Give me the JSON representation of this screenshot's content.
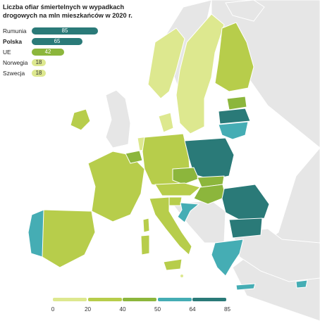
{
  "title_line1": "Liczba ofiar śmiertelnych w wypadkach",
  "title_line2": "drogowych na mln mieszkańców w 2020 r.",
  "bars": [
    {
      "label": "Rumunia",
      "value": "85",
      "num": 85,
      "bold": false,
      "color": "#2a7a78",
      "text_color": "#ffffff"
    },
    {
      "label": "Polska",
      "value": "65",
      "num": 65,
      "bold": true,
      "color": "#2a7a78",
      "text_color": "#ffffff"
    },
    {
      "label": "UE",
      "value": "42",
      "num": 42,
      "bold": false,
      "color": "#8cb63c",
      "text_color": "#ffffff"
    },
    {
      "label": "Norwegia",
      "value": "18",
      "num": 18,
      "bold": false,
      "color": "#dde88f",
      "text_color": "#333333"
    },
    {
      "label": "Szwecja",
      "value": "18",
      "num": 18,
      "bold": false,
      "color": "#dde88f",
      "text_color": "#333333"
    }
  ],
  "legend": {
    "ticks": [
      "0",
      "20",
      "40",
      "50",
      "64",
      "85"
    ],
    "colors": [
      "#dde88f",
      "#b7cd4b",
      "#8cb63c",
      "#45adb4",
      "#2a7a78"
    ]
  },
  "colors": {
    "background_land": "#e6e6e6",
    "sea": "#ffffff"
  }
}
